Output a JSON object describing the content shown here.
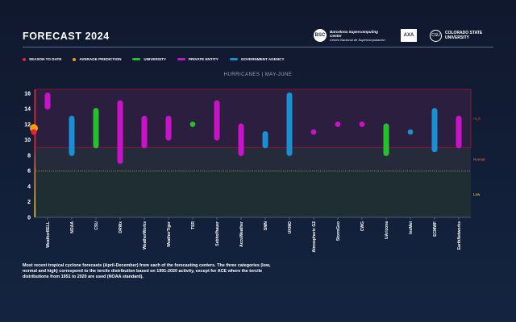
{
  "header": {
    "title": "FORECAST 2024",
    "logos": {
      "bsc": {
        "mark": "BSC",
        "name": "Barcelona Supercomputing Center",
        "subtitle": "Centro Nacional de Supercomputación"
      },
      "axa": {
        "mark": "AXA"
      },
      "csu": {
        "mark": "CSU",
        "name": "COLORADO STATE UNIVERSITY"
      }
    }
  },
  "colors": {
    "season_to_date": "#e0243c",
    "average_prediction": "#f2a007",
    "university": "#25c02e",
    "private_entity": "#c814c8",
    "government_agency": "#1a8fd1",
    "high_band": "#2b1e3e",
    "normal_band": "#262b3c",
    "low_band": "#1f2e33"
  },
  "legend": [
    {
      "key": "season_to_date",
      "label": "SEASON TO DATE",
      "marker": "dot"
    },
    {
      "key": "average_prediction",
      "label": "AVERAGE PREDICTION",
      "marker": "dot"
    },
    {
      "key": "university",
      "label": "UNIVERSITY",
      "marker": "bar"
    },
    {
      "key": "private_entity",
      "label": "PRIVATE ENTITY",
      "marker": "bar"
    },
    {
      "key": "government_agency",
      "label": "GOVERNMENT AGENCY",
      "marker": "bar"
    }
  ],
  "subtitle": "HURRICANES  |  MAY-JUNE",
  "footnote": "Most recent tropical cyclone forecasts (April-December) from each of the forecasting centers. The three categories (low, normal and high) correspond to the tercile distribution based on 1991-2020 activity, except for ACE where the tercile distributions from 1951 to 2020 are used (NOAA standard).",
  "chart_data": {
    "type": "range",
    "ylim": [
      0,
      16.5
    ],
    "yticks": [
      0,
      2,
      4,
      6,
      8,
      10,
      12,
      14,
      16
    ],
    "terciles": [
      {
        "label": "High",
        "from": 9,
        "to": 16.5
      },
      {
        "label": "Normal",
        "from": 6,
        "to": 9
      },
      {
        "label": "Low",
        "from": 0,
        "to": 6
      }
    ],
    "season_to_date": 11,
    "average_prediction": 11.5,
    "forecasters": [
      {
        "name": "WeatherBELL",
        "type": "private_entity",
        "low": 14,
        "high": 16
      },
      {
        "name": "NOAA",
        "type": "government_agency",
        "low": 8,
        "high": 13
      },
      {
        "name": "CSU",
        "type": "university",
        "low": 9,
        "high": 14
      },
      {
        "name": "DRWx",
        "type": "private_entity",
        "low": 7,
        "high": 15
      },
      {
        "name": "WeatherWorks",
        "type": "private_entity",
        "low": 9,
        "high": 13
      },
      {
        "name": "WeatherTiger",
        "type": "private_entity",
        "low": 10,
        "high": 13
      },
      {
        "name": "TSR",
        "type": "university",
        "low": 12,
        "high": 12
      },
      {
        "name": "Sebhofhauer",
        "type": "private_entity",
        "low": 10,
        "high": 15
      },
      {
        "name": "AccuWeather",
        "type": "private_entity",
        "low": 8,
        "high": 12
      },
      {
        "name": "SMN",
        "type": "government_agency",
        "low": 9,
        "high": 11
      },
      {
        "name": "UKMO",
        "type": "government_agency",
        "low": 8,
        "high": 16
      },
      {
        "name": "Atmospheric G2",
        "type": "private_entity",
        "low": 11,
        "high": 11
      },
      {
        "name": "StormGeo",
        "type": "private_entity",
        "low": 12,
        "high": 12
      },
      {
        "name": "CWG",
        "type": "private_entity",
        "low": 12,
        "high": 12
      },
      {
        "name": "UArizona",
        "type": "university",
        "low": 8,
        "high": 12
      },
      {
        "name": "InsMet",
        "type": "government_agency",
        "low": 11,
        "high": 11
      },
      {
        "name": "ECMWF",
        "type": "government_agency",
        "low": 8.5,
        "high": 14
      },
      {
        "name": "EarthNetworks",
        "type": "private_entity",
        "low": 9,
        "high": 13
      }
    ]
  }
}
